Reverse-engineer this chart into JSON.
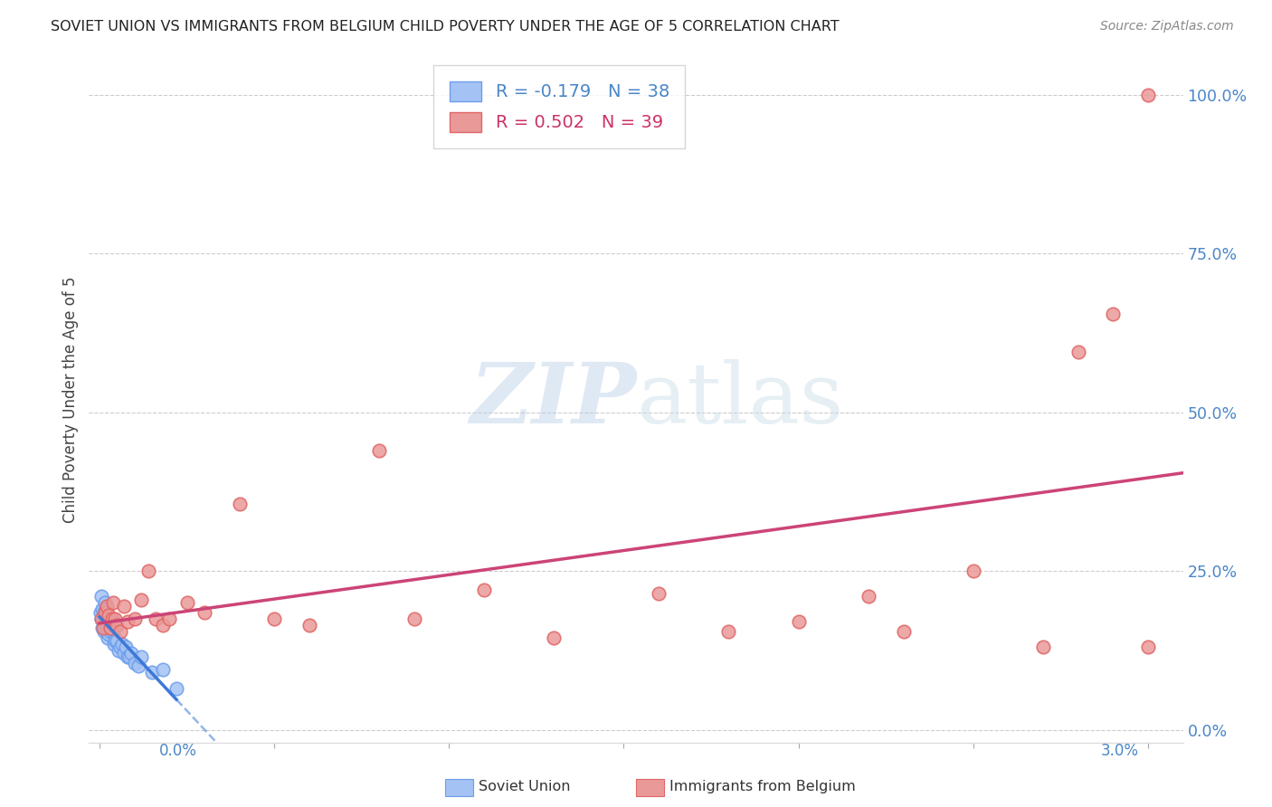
{
  "title": "SOVIET UNION VS IMMIGRANTS FROM BELGIUM CHILD POVERTY UNDER THE AGE OF 5 CORRELATION CHART",
  "source": "Source: ZipAtlas.com",
  "ylabel": "Child Poverty Under the Age of 5",
  "legend_label1": "Soviet Union",
  "legend_label2": "Immigrants from Belgium",
  "R1": -0.179,
  "N1": 38,
  "R2": 0.502,
  "N2": 39,
  "blue_scatter_color": "#a4c2f4",
  "blue_edge_color": "#6d9eeb",
  "pink_scatter_color": "#ea9999",
  "pink_edge_color": "#e06666",
  "blue_line_color": "#3c78d8",
  "pink_line_color": "#cc4477",
  "axis_tick_color": "#4a86c8",
  "grid_color": "#cccccc",
  "watermark_color": "#d0e4f0",
  "title_color": "#222222",
  "source_color": "#888888",
  "su_x": [
    3e-05,
    5e-05,
    6e-05,
    8e-05,
    8e-05,
    0.0001,
    0.00012,
    0.00013,
    0.00015,
    0.00016,
    0.00017,
    0.00018,
    0.0002,
    0.00022,
    0.00023,
    0.00025,
    0.00028,
    0.0003,
    0.00032,
    0.00035,
    0.0004,
    0.00042,
    0.00045,
    0.0005,
    0.00055,
    0.0006,
    0.00065,
    0.0007,
    0.00075,
    0.0008,
    0.00085,
    0.0009,
    0.001,
    0.0011,
    0.0012,
    0.0015,
    0.0018,
    0.0022
  ],
  "su_y": [
    0.185,
    0.175,
    0.21,
    0.16,
    0.19,
    0.175,
    0.155,
    0.185,
    0.2,
    0.165,
    0.175,
    0.19,
    0.155,
    0.145,
    0.175,
    0.15,
    0.165,
    0.155,
    0.165,
    0.17,
    0.155,
    0.135,
    0.14,
    0.14,
    0.125,
    0.13,
    0.135,
    0.12,
    0.13,
    0.115,
    0.115,
    0.12,
    0.105,
    0.1,
    0.115,
    0.09,
    0.095,
    0.065
  ],
  "bel_x": [
    5e-05,
    0.0001,
    0.00015,
    0.0002,
    0.00025,
    0.0003,
    0.00035,
    0.0004,
    0.00045,
    0.0005,
    0.0006,
    0.0007,
    0.0008,
    0.001,
    0.0012,
    0.0014,
    0.0016,
    0.0018,
    0.002,
    0.0025,
    0.003,
    0.004,
    0.005,
    0.006,
    0.008,
    0.009,
    0.011,
    0.013,
    0.016,
    0.018,
    0.02,
    0.022,
    0.023,
    0.025,
    0.027,
    0.028,
    0.029,
    0.03,
    0.03
  ],
  "bel_y": [
    0.175,
    0.16,
    0.185,
    0.195,
    0.18,
    0.16,
    0.175,
    0.2,
    0.175,
    0.165,
    0.155,
    0.195,
    0.17,
    0.175,
    0.205,
    0.25,
    0.175,
    0.165,
    0.175,
    0.2,
    0.185,
    0.355,
    0.175,
    0.165,
    0.44,
    0.175,
    0.22,
    0.145,
    0.215,
    0.155,
    0.17,
    0.21,
    0.155,
    0.25,
    0.13,
    0.595,
    0.655,
    1.0,
    0.13
  ],
  "xlim": [
    -0.0003,
    0.031
  ],
  "ylim": [
    -0.02,
    1.06
  ]
}
